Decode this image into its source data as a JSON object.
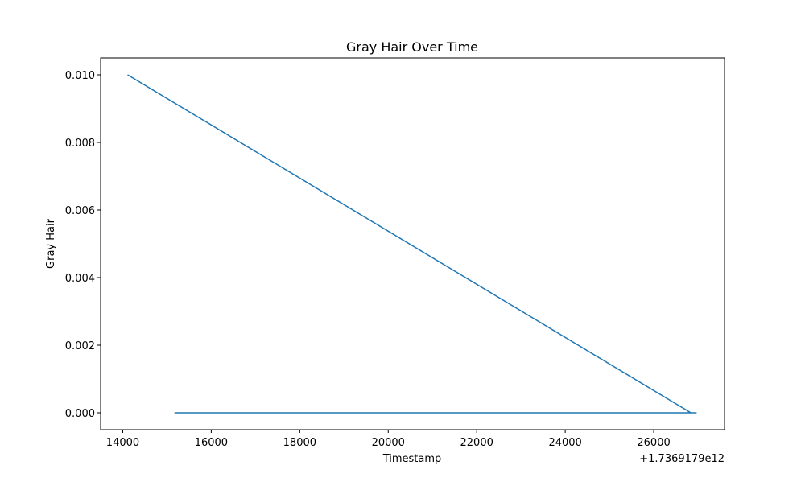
{
  "chart_data": {
    "type": "line",
    "title": "Gray Hair Over Time",
    "xlabel": "Timestamp",
    "ylabel": "Gray Hair",
    "x_offset_label": "+1.7369179e12",
    "x_ticks": [
      14000,
      16000,
      18000,
      20000,
      22000,
      24000,
      26000
    ],
    "x_tick_labels": [
      "14000",
      "16000",
      "18000",
      "20000",
      "22000",
      "24000",
      "26000"
    ],
    "y_ticks": [
      0.0,
      0.002,
      0.004,
      0.006,
      0.008,
      0.01
    ],
    "y_tick_labels": [
      "0.000",
      "0.002",
      "0.004",
      "0.006",
      "0.008",
      "0.010"
    ],
    "xlim": [
      13500,
      27600
    ],
    "ylim": [
      -0.0005,
      0.0105
    ],
    "grid": false,
    "legend": "none",
    "series": [
      {
        "color": "#1f77b4",
        "x": [
          14110,
          26840,
          26960,
          15180,
          26960
        ],
        "y": [
          0.01,
          0.0,
          0.0,
          0.0,
          0.0
        ]
      }
    ]
  }
}
